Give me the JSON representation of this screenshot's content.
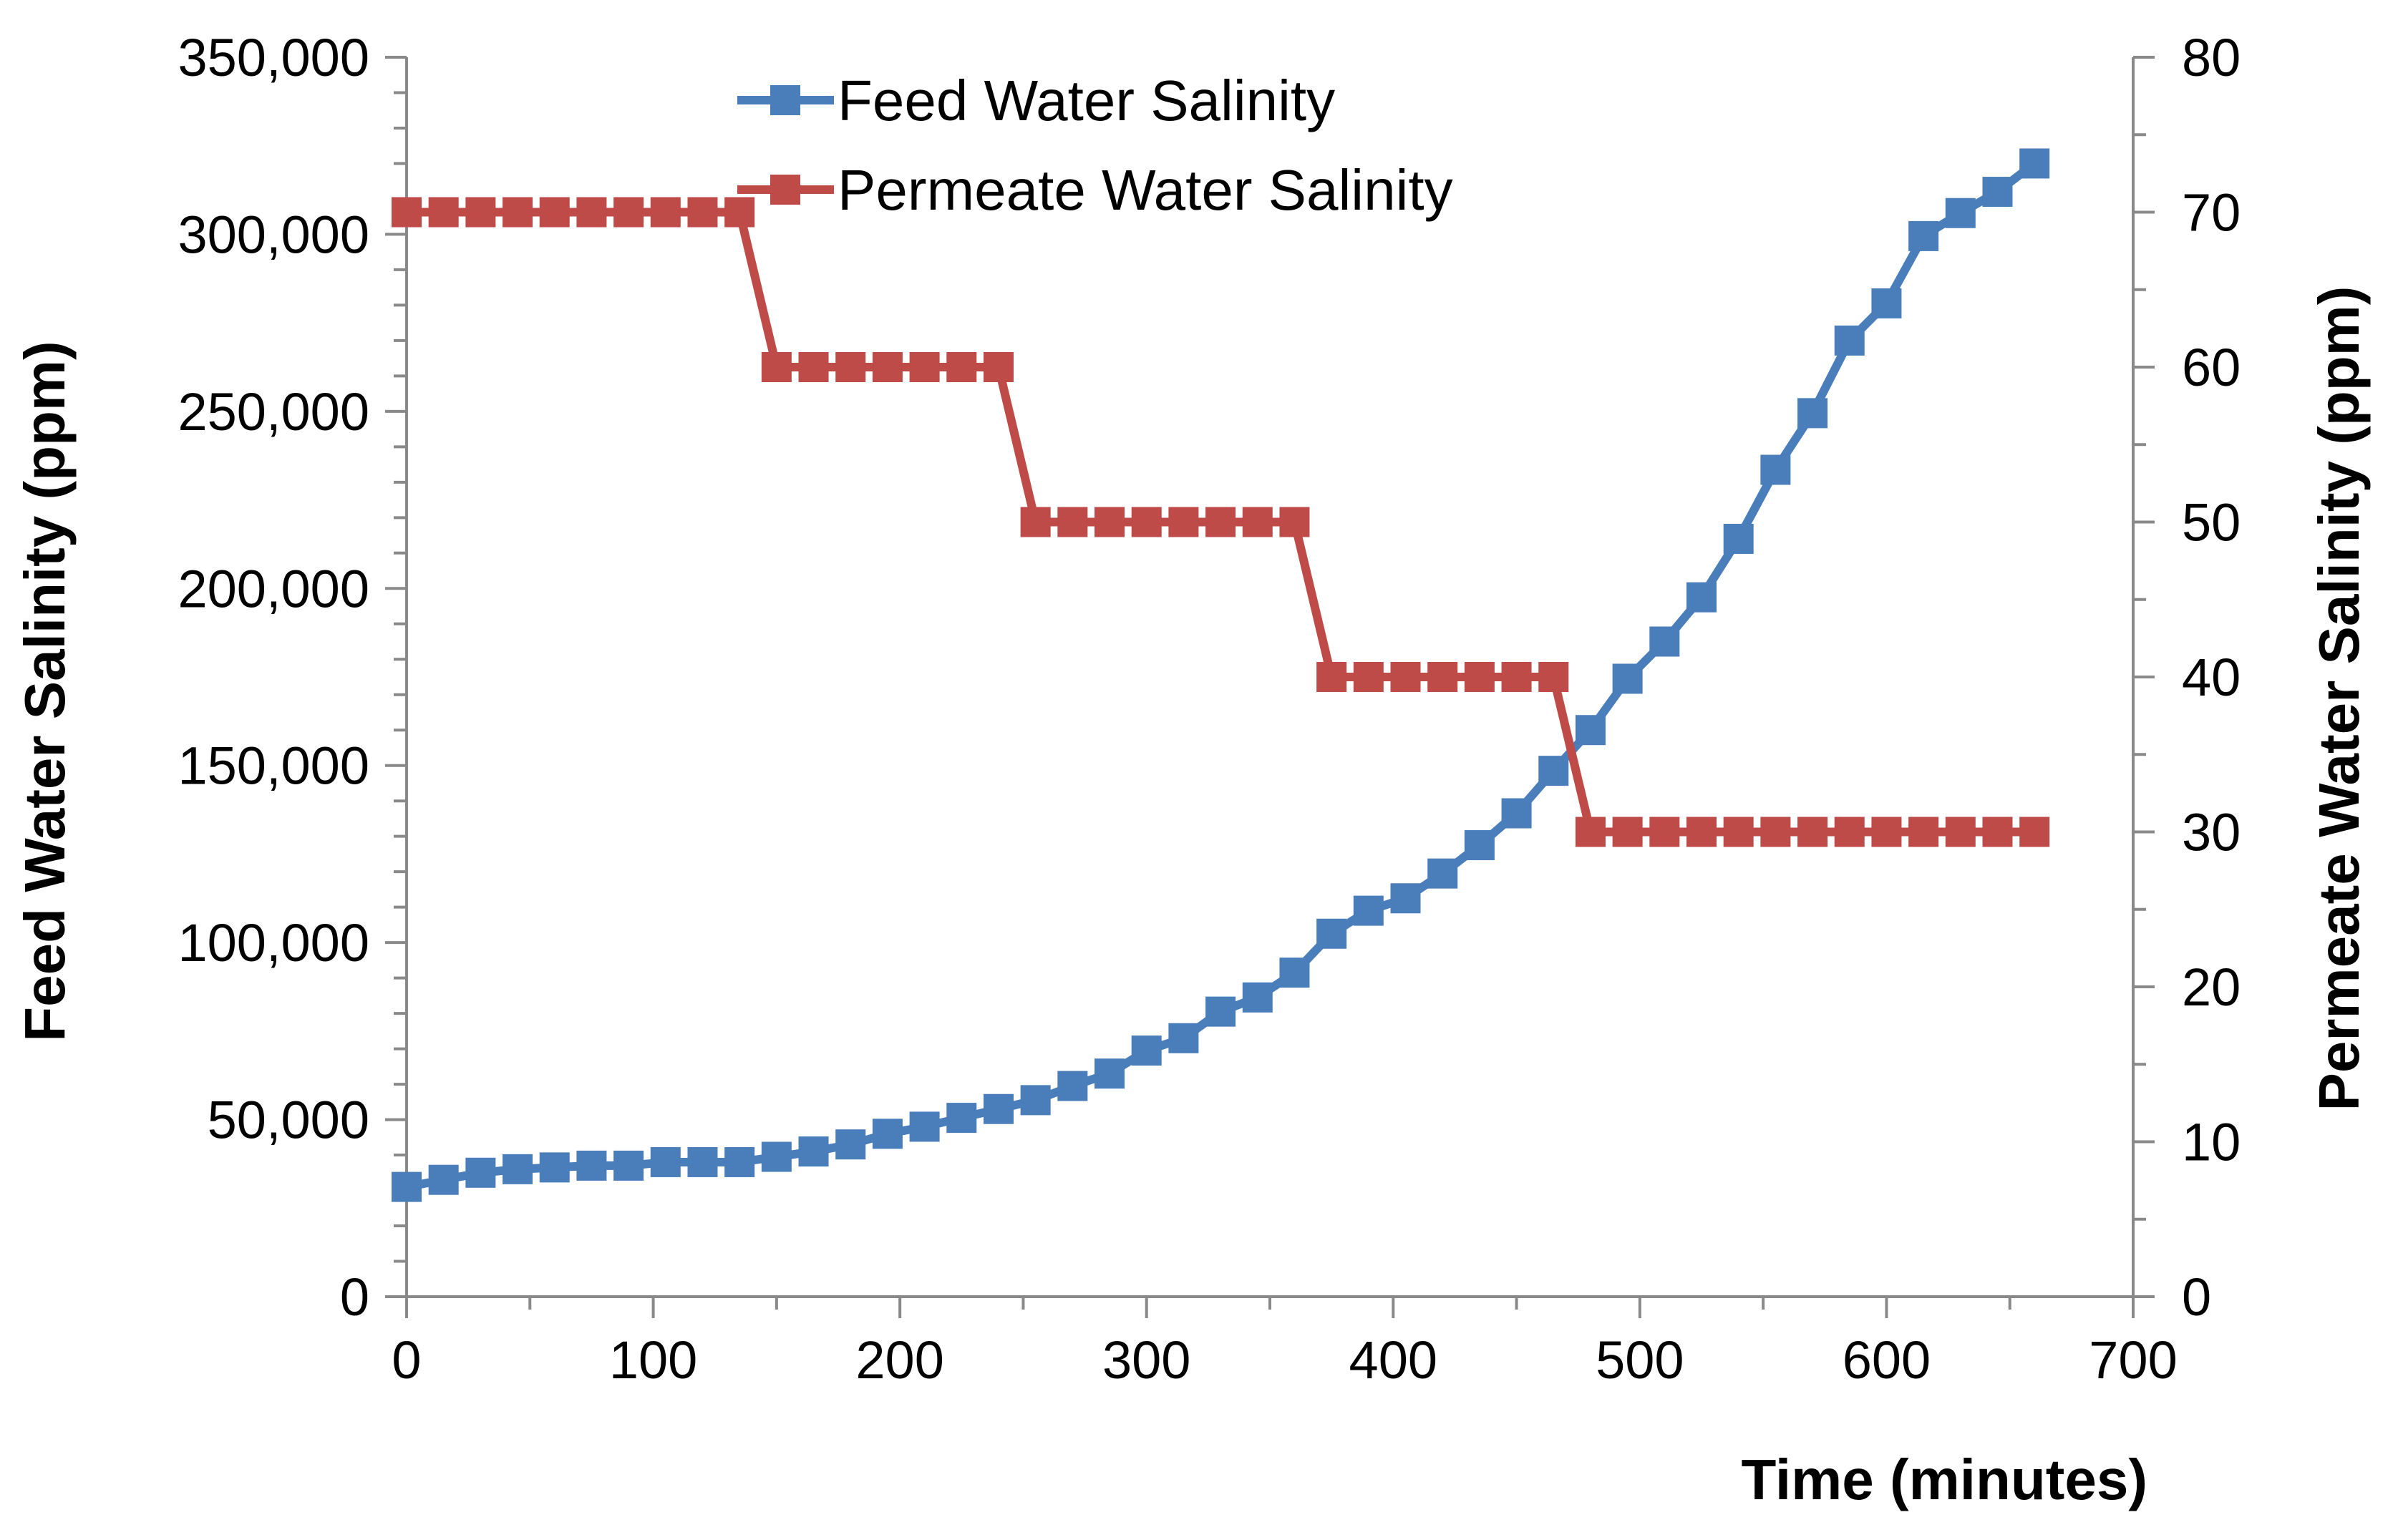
{
  "chart_data": {
    "type": "line",
    "title": "",
    "xlabel": "Time (minutes)",
    "ylabel": "Feed Water Salinity (ppm)",
    "y2label": "Permeate Water Salinity (ppm)",
    "xlim": [
      0,
      700
    ],
    "ylim": [
      0,
      350000
    ],
    "y2lim": [
      0,
      80
    ],
    "x_ticks": [
      "0",
      "100",
      "200",
      "300",
      "400",
      "500",
      "600",
      "700"
    ],
    "y_ticks": [
      "0",
      "50,000",
      "100,000",
      "150,000",
      "200,000",
      "250,000",
      "300,000",
      "350,000"
    ],
    "y2_ticks": [
      "0",
      "10",
      "20",
      "30",
      "40",
      "50",
      "60",
      "70",
      "80"
    ],
    "grid": false,
    "legend_position": "top-center",
    "series": [
      {
        "name": "Feed Water Salinity",
        "axis": "left",
        "color": "#4a7ebb",
        "marker": "square",
        "x": [
          0,
          15,
          30,
          45,
          60,
          75,
          90,
          105,
          120,
          135,
          150,
          165,
          180,
          195,
          210,
          225,
          240,
          255,
          270,
          285,
          300,
          315,
          330,
          345,
          360,
          375,
          390,
          405,
          420,
          435,
          450,
          465,
          480,
          495,
          510,
          525,
          540,
          555,
          570,
          585,
          600,
          615,
          630,
          645,
          660
        ],
        "values": [
          31000,
          33000,
          35000,
          36000,
          36500,
          37000,
          37000,
          38000,
          38000,
          38000,
          39500,
          41000,
          43000,
          46000,
          48000,
          50500,
          53000,
          55500,
          59500,
          63000,
          69500,
          73000,
          80500,
          84500,
          91500,
          102500,
          109000,
          112500,
          119500,
          127500,
          136500,
          148500,
          160000,
          174500,
          185000,
          197500,
          214000,
          233500,
          249500,
          270000,
          280500,
          299500,
          306000,
          312000,
          320000
        ]
      },
      {
        "name": "Permeate Water Salinity",
        "axis": "right",
        "color": "#be4b48",
        "marker": "square",
        "x": [
          0,
          15,
          30,
          45,
          60,
          75,
          90,
          105,
          120,
          135,
          150,
          165,
          180,
          195,
          210,
          225,
          240,
          255,
          270,
          285,
          300,
          315,
          330,
          345,
          360,
          375,
          390,
          405,
          420,
          435,
          450,
          465,
          480,
          495,
          510,
          525,
          540,
          555,
          570,
          585,
          600,
          615,
          630,
          645,
          660
        ],
        "values": [
          70,
          70,
          70,
          70,
          70,
          70,
          70,
          70,
          70,
          70,
          60,
          60,
          60,
          60,
          60,
          60,
          60,
          50,
          50,
          50,
          50,
          50,
          50,
          50,
          50,
          40,
          40,
          40,
          40,
          40,
          40,
          40,
          30,
          30,
          30,
          30,
          30,
          30,
          30,
          30,
          30,
          30,
          30,
          30,
          30
        ]
      }
    ]
  }
}
